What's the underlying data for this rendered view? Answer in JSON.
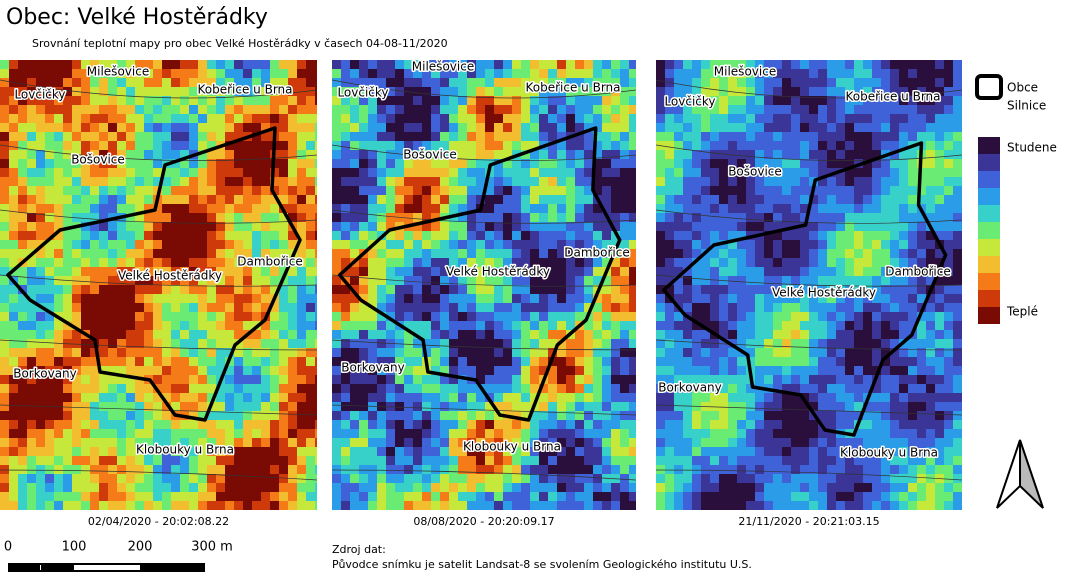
{
  "header": {
    "title": "Obec: Velké Hostěrádky",
    "subtitle": "Srovnání teplotní mapy pro obec Velké Hostěrádky v časech 04-08-11/2020"
  },
  "maps": [
    {
      "date": "02/04/2020 - 20:02:08.22",
      "places": [
        "Milešovice",
        "Lovčičky",
        "Kobeřice u Brna",
        "Bošovice",
        "Dambořice",
        "Velké Hostěrádky",
        "Borkovany",
        "Klobouky u Brna"
      ]
    },
    {
      "date": "08/08/2020 - 20:20:09.17",
      "places": [
        "Milešovice",
        "Lovčičky",
        "Kobeřice u Brna",
        "Bošovice",
        "Dambořice",
        "Velké Hostěrádky",
        "Borkovany",
        "Klobouky u Brna"
      ]
    },
    {
      "date": "21/11/2020 - 20:21:03.15",
      "places": [
        "Milešovice",
        "Lovčičky",
        "Kobeřice u Brna",
        "Bošovice",
        "Dambořice",
        "Velké Hostěrádky",
        "Borkovany",
        "Klobouky u Brna"
      ]
    }
  ],
  "legend": {
    "items": [
      "Obce",
      "Silnice"
    ],
    "cold": "Studene",
    "warm": "Teplé"
  },
  "scalebar": [
    "0",
    "100",
    "200",
    "300 m"
  ],
  "source": {
    "heading": "Zdroj dat:",
    "text": "Původce snímku je satelit Landsat-8 se svolením Geologického institutu U.S."
  }
}
